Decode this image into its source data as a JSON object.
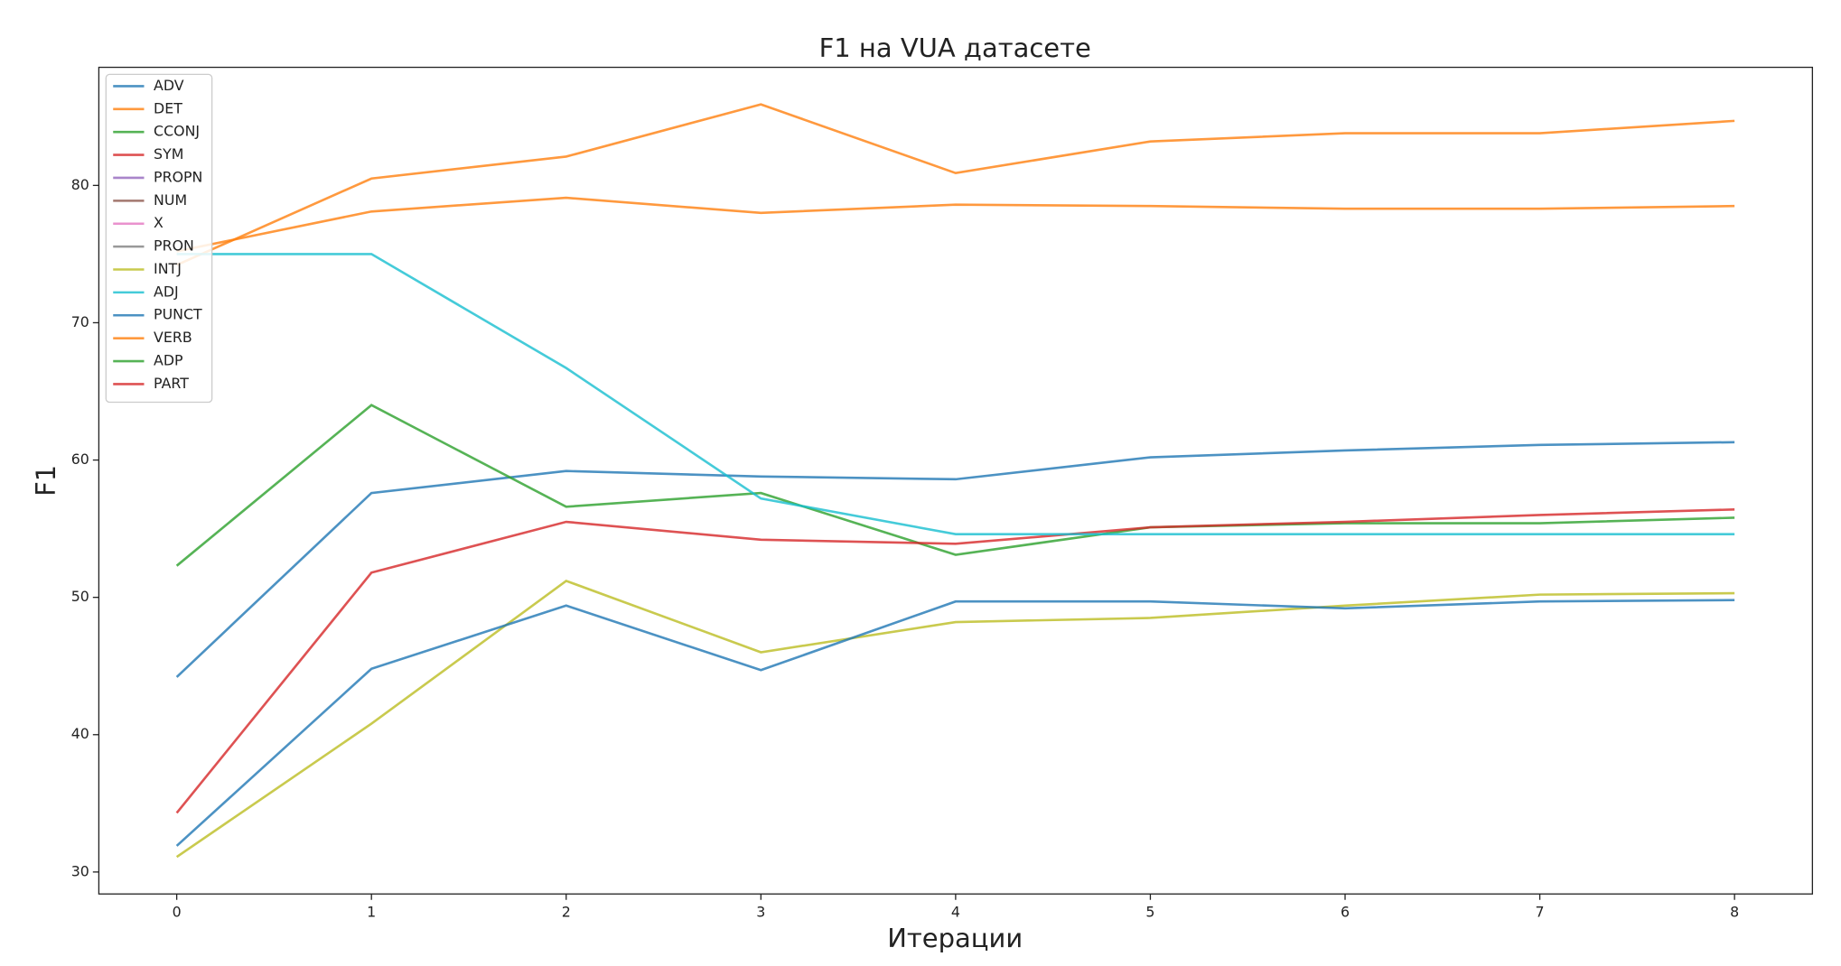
{
  "chart_data": {
    "type": "line",
    "title": "F1 на VUA датасете",
    "x_label": "Итерации",
    "y_label": "F1",
    "x": [
      0,
      1,
      2,
      3,
      4,
      5,
      6,
      7,
      8
    ],
    "xlim": [
      -0.4,
      8.4
    ],
    "xticks": [
      0,
      1,
      2,
      3,
      4,
      5,
      6,
      7,
      8
    ],
    "ylim": [
      28.4,
      88.6
    ],
    "yticks": [
      30,
      40,
      50,
      60,
      70,
      80
    ],
    "legend": "upper left",
    "series": [
      {
        "name": "ADV",
        "color": "#1f77b4",
        "values": [
          44.2,
          57.6,
          59.2,
          58.8,
          58.6,
          60.2,
          60.7,
          61.1,
          61.3
        ]
      },
      {
        "name": "DET",
        "color": "#ff7f0e",
        "values": [
          74.2,
          80.5,
          82.1,
          85.9,
          80.9,
          83.2,
          83.8,
          83.8,
          84.7
        ]
      },
      {
        "name": "CCONJ",
        "color": "#2ca02c",
        "values": [
          52.3,
          64.0,
          56.6,
          57.6,
          53.1,
          55.1,
          55.4,
          55.4,
          55.8
        ]
      },
      {
        "name": "SYM",
        "color": "#d62728",
        "values": [
          34.3,
          51.8,
          55.5,
          54.2,
          53.9,
          55.1,
          55.5,
          56.0,
          56.4
        ]
      },
      {
        "name": "PROPN",
        "color": "#9467bd",
        "values": [
          null,
          null,
          null,
          null,
          null,
          null,
          null,
          null,
          null
        ]
      },
      {
        "name": "NUM",
        "color": "#8c564b",
        "values": [
          null,
          null,
          null,
          null,
          null,
          null,
          null,
          null,
          null
        ]
      },
      {
        "name": "X",
        "color": "#e377c2",
        "values": [
          null,
          null,
          null,
          null,
          null,
          null,
          null,
          null,
          null
        ]
      },
      {
        "name": "PRON",
        "color": "#7f7f7f",
        "values": [
          null,
          null,
          null,
          null,
          null,
          null,
          null,
          null,
          null
        ]
      },
      {
        "name": "INTJ",
        "color": "#bcbd22",
        "values": [
          31.1,
          40.8,
          51.2,
          46.0,
          48.2,
          48.5,
          49.4,
          50.2,
          50.3
        ]
      },
      {
        "name": "ADJ",
        "color": "#17becf",
        "values": [
          75.0,
          75.0,
          66.7,
          57.2,
          54.6,
          54.6,
          54.6,
          54.6,
          54.6
        ]
      },
      {
        "name": "PUNCT",
        "color": "#1f77b4",
        "values": [
          31.9,
          44.8,
          49.4,
          44.7,
          49.7,
          49.7,
          49.2,
          49.7,
          49.8
        ]
      },
      {
        "name": "VERB",
        "color": "#ff7f0e",
        "values": [
          75.2,
          78.1,
          79.1,
          78.0,
          78.6,
          78.5,
          78.3,
          78.3,
          78.5
        ]
      },
      {
        "name": "ADP",
        "color": "#2ca02c",
        "values": [
          null,
          null,
          null,
          null,
          null,
          null,
          null,
          null,
          null
        ]
      },
      {
        "name": "PART",
        "color": "#d62728",
        "values": [
          null,
          null,
          null,
          null,
          null,
          null,
          null,
          null,
          null
        ]
      }
    ]
  }
}
